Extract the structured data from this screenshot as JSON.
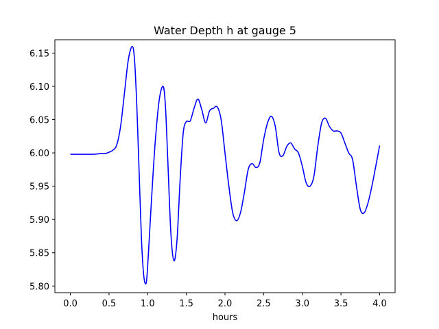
{
  "chart_data": {
    "type": "line",
    "title": "Water Depth h at gauge 5",
    "xlabel": "hours",
    "ylabel": "",
    "xlim": [
      -0.2,
      4.2
    ],
    "ylim": [
      5.79,
      6.17
    ],
    "xticks": [
      0.0,
      0.5,
      1.0,
      1.5,
      2.0,
      2.5,
      3.0,
      3.5,
      4.0
    ],
    "xtick_labels": [
      "0.0",
      "0.5",
      "1.0",
      "1.5",
      "2.0",
      "2.5",
      "3.0",
      "3.5",
      "4.0"
    ],
    "yticks": [
      5.8,
      5.85,
      5.9,
      5.95,
      6.0,
      6.05,
      6.1,
      6.15
    ],
    "ytick_labels": [
      "5.80",
      "5.85",
      "5.90",
      "5.95",
      "6.00",
      "6.05",
      "6.10",
      "6.15"
    ],
    "grid": false,
    "series": [
      {
        "color": "#0000ff",
        "x": [
          0.0,
          0.1,
          0.2,
          0.3,
          0.4,
          0.45,
          0.5,
          0.55,
          0.6,
          0.65,
          0.7,
          0.75,
          0.8,
          0.83,
          0.86,
          0.89,
          0.92,
          0.95,
          0.98,
          1.0,
          1.03,
          1.06,
          1.1,
          1.15,
          1.2,
          1.23,
          1.26,
          1.3,
          1.34,
          1.38,
          1.42,
          1.46,
          1.5,
          1.55,
          1.6,
          1.65,
          1.7,
          1.75,
          1.8,
          1.85,
          1.9,
          1.95,
          2.0,
          2.05,
          2.1,
          2.15,
          2.2,
          2.25,
          2.3,
          2.35,
          2.4,
          2.45,
          2.5,
          2.55,
          2.6,
          2.65,
          2.7,
          2.75,
          2.8,
          2.85,
          2.9,
          2.95,
          3.0,
          3.05,
          3.1,
          3.15,
          3.2,
          3.25,
          3.3,
          3.35,
          3.4,
          3.45,
          3.5,
          3.55,
          3.6,
          3.65,
          3.7,
          3.75,
          3.8,
          3.85,
          3.9,
          3.95,
          4.0
        ],
        "y": [
          5.998,
          5.998,
          5.998,
          5.998,
          5.999,
          5.999,
          6.001,
          6.004,
          6.012,
          6.04,
          6.09,
          6.14,
          6.16,
          6.14,
          6.07,
          5.97,
          5.87,
          5.815,
          5.804,
          5.83,
          5.89,
          5.95,
          6.02,
          6.08,
          6.1,
          6.07,
          5.99,
          5.88,
          5.838,
          5.87,
          5.96,
          6.03,
          6.047,
          6.048,
          6.067,
          6.081,
          6.065,
          6.045,
          6.063,
          6.067,
          6.069,
          6.05,
          6.0,
          5.95,
          5.91,
          5.898,
          5.91,
          5.94,
          5.975,
          5.984,
          5.978,
          5.985,
          6.02,
          6.045,
          6.055,
          6.04,
          6.0,
          5.996,
          6.01,
          6.015,
          6.006,
          6.0,
          5.98,
          5.955,
          5.95,
          5.965,
          6.01,
          6.045,
          6.052,
          6.04,
          6.033,
          6.033,
          6.03,
          6.015,
          6.0,
          5.99,
          5.95,
          5.915,
          5.91,
          5.925,
          5.95,
          5.98,
          6.011
        ]
      }
    ]
  }
}
